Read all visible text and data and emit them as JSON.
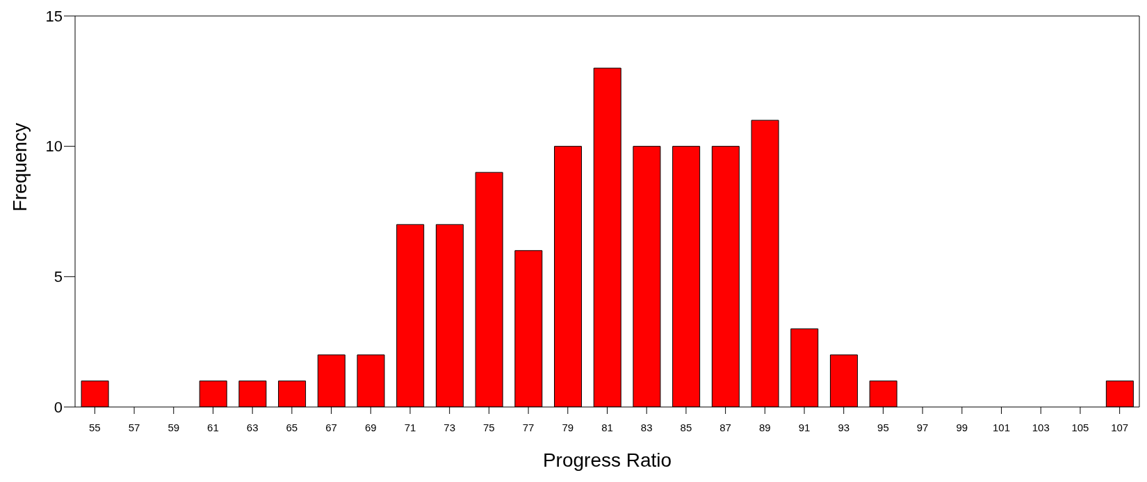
{
  "chart_data": {
    "type": "bar",
    "xlabel": "Progress Ratio",
    "ylabel": "Frequency",
    "categories": [
      "55",
      "57",
      "59",
      "61",
      "63",
      "65",
      "67",
      "69",
      "71",
      "73",
      "75",
      "77",
      "79",
      "81",
      "83",
      "85",
      "87",
      "89",
      "91",
      "93",
      "95",
      "97",
      "99",
      "101",
      "103",
      "105",
      "107"
    ],
    "values": [
      1,
      0,
      0,
      1,
      1,
      1,
      2,
      2,
      7,
      7,
      9,
      6,
      10,
      13,
      10,
      10,
      10,
      11,
      3,
      2,
      1,
      0,
      0,
      0,
      0,
      0,
      1
    ],
    "color": "#ff0000",
    "ylim": [
      0,
      15
    ],
    "yticks": [
      0,
      5,
      10,
      15
    ],
    "grid": false,
    "legend": false
  }
}
